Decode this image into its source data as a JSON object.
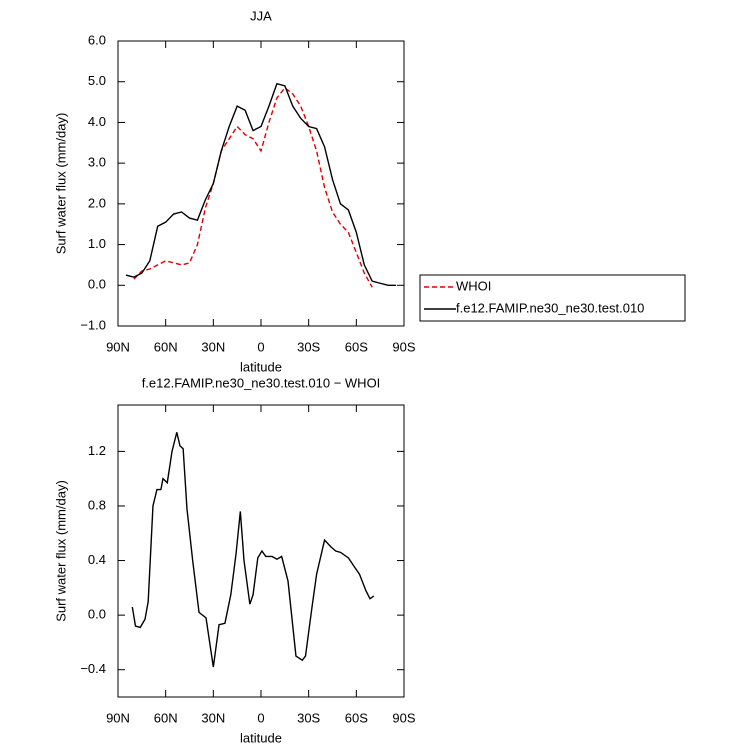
{
  "chart_data": [
    {
      "type": "line",
      "title": "JJA",
      "xlabel": "latitude",
      "ylabel": "Surf water flux (mm/day)",
      "x": [
        85,
        80,
        75,
        70,
        65,
        60,
        55,
        50,
        45,
        40,
        35,
        30,
        25,
        20,
        15,
        10,
        5,
        0,
        -5,
        -10,
        -15,
        -20,
        -25,
        -30,
        -35,
        -40,
        -45,
        -50,
        -55,
        -60,
        -65,
        -70,
        -75,
        -80,
        -85
      ],
      "series": [
        {
          "name": "WHOI",
          "color": "#e00000",
          "line_style": "dashed",
          "values": [
            null,
            0.15,
            0.35,
            0.4,
            0.5,
            0.6,
            0.55,
            0.5,
            0.55,
            1.0,
            1.9,
            2.5,
            3.3,
            3.6,
            3.9,
            3.7,
            3.6,
            3.3,
            4.0,
            4.6,
            4.85,
            4.7,
            4.4,
            3.9,
            3.3,
            2.4,
            1.8,
            1.5,
            1.3,
            0.8,
            0.3,
            -0.05,
            null,
            null,
            null
          ]
        },
        {
          "name": "f.e12.FAMIP.ne30_ne30.test.010",
          "color": "#000000",
          "line_style": "solid",
          "values": [
            0.25,
            0.2,
            0.3,
            0.6,
            1.45,
            1.55,
            1.75,
            1.8,
            1.65,
            1.6,
            2.1,
            2.5,
            3.3,
            3.9,
            4.4,
            4.3,
            3.8,
            3.9,
            4.4,
            4.95,
            4.9,
            4.4,
            4.1,
            3.9,
            3.85,
            3.4,
            2.6,
            2.0,
            1.85,
            1.3,
            0.5,
            0.1,
            0.05,
            0.0,
            0.0
          ]
        }
      ],
      "xlim": [
        90,
        -90
      ],
      "xticks": [
        {
          "value": 90,
          "label": "90N"
        },
        {
          "value": 60,
          "label": "60N"
        },
        {
          "value": 30,
          "label": "30N"
        },
        0,
        {
          "value": -30,
          "label": "30S"
        },
        {
          "value": -60,
          "label": "60S"
        },
        {
          "value": -90,
          "label": "90S"
        }
      ],
      "ylim": [
        -1,
        6
      ],
      "yticks": [
        {
          "value": -1,
          "label": "−1.0"
        },
        {
          "value": 0,
          "label": "0.0"
        },
        {
          "value": 1,
          "label": "1.0"
        },
        {
          "value": 2,
          "label": "2.0"
        },
        {
          "value": 3,
          "label": "3.0"
        },
        {
          "value": 4,
          "label": "4.0"
        },
        {
          "value": 5,
          "label": "5.0"
        },
        {
          "value": 6,
          "label": "6.0"
        }
      ],
      "legend": "outside-right"
    },
    {
      "type": "line",
      "title": "f.e12.FAMIP.ne30_ne30.test.010 − WHOI",
      "xlabel": "latitude",
      "ylabel": "Surf water flux (mm/day)",
      "x": [
        81,
        79,
        76,
        73,
        71,
        68,
        65.5,
        63,
        61.7,
        59,
        56,
        53,
        51,
        49,
        46.6,
        43,
        39,
        34.6,
        30,
        26.4,
        22.7,
        19,
        15.7,
        13,
        10.7,
        7,
        5,
        2,
        -0.6,
        -3,
        -7,
        -10,
        -13,
        -17,
        -22,
        -26,
        -28,
        -32,
        -35,
        -40,
        -44,
        -47,
        -50,
        -55,
        -59,
        -62,
        -66,
        -68.6,
        -71
      ],
      "series": [
        {
          "color": "#000000",
          "line_style": "solid",
          "values": [
            0.06,
            -0.08,
            -0.09,
            -0.03,
            0.1,
            0.8,
            0.92,
            0.92,
            1.0,
            0.97,
            1.2,
            1.34,
            1.24,
            1.22,
            0.78,
            0.4,
            0.02,
            -0.02,
            -0.38,
            -0.07,
            -0.06,
            0.15,
            0.45,
            0.76,
            0.4,
            0.08,
            0.15,
            0.42,
            0.47,
            0.43,
            0.43,
            0.41,
            0.43,
            0.25,
            -0.3,
            -0.33,
            -0.3,
            0.05,
            0.3,
            0.55,
            0.5,
            0.47,
            0.46,
            0.42,
            0.35,
            0.3,
            0.18,
            0.12,
            0.14
          ]
        }
      ],
      "xlim": [
        90,
        -90
      ],
      "xticks": [
        {
          "value": 90,
          "label": "90N"
        },
        {
          "value": 60,
          "label": "60N"
        },
        {
          "value": 30,
          "label": "30N"
        },
        0,
        {
          "value": -30,
          "label": "30S"
        },
        {
          "value": -60,
          "label": "60S"
        },
        {
          "value": -90,
          "label": "90S"
        }
      ],
      "ylim": [
        -0.6,
        1.54
      ],
      "yticks": [
        {
          "value": -0.4,
          "label": "−0.4"
        },
        {
          "value": 0,
          "label": "0.0"
        },
        0.4,
        0.8,
        1.2
      ]
    }
  ]
}
